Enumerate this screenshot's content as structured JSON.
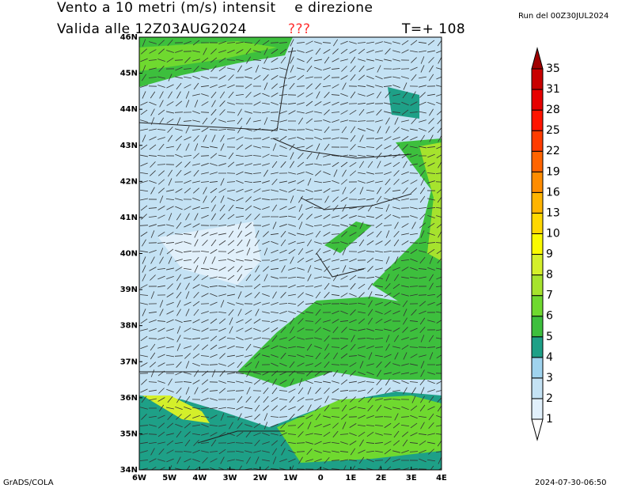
{
  "header": {
    "title": "Vento a 10 metri (m/s) intensit    e direzione",
    "valid": "Valida alle 12Z03AUG2024",
    "flag": "???",
    "forecast": "T=+ 108",
    "run": "Run del 00Z30JUL2024"
  },
  "map": {
    "lat_labels": [
      "34N",
      "35N",
      "36N",
      "37N",
      "38N",
      "39N",
      "40N",
      "41N",
      "42N",
      "43N",
      "44N",
      "45N",
      "46N"
    ],
    "lon_labels": [
      "6W",
      "5W",
      "4W",
      "3W",
      "2W",
      "1W",
      "0",
      "1E",
      "2E",
      "3E",
      "4E"
    ]
  },
  "colorbar": {
    "levels": [
      1,
      2,
      3,
      4,
      5,
      6,
      7,
      8,
      9,
      10,
      13,
      16,
      19,
      22,
      25,
      28,
      31,
      35
    ],
    "colors": [
      "#ffffff",
      "#e1f0fb",
      "#c4e2f4",
      "#9fd3ee",
      "#1ea087",
      "#3dbf3d",
      "#6fd92f",
      "#a6e32d",
      "#d4ef2a",
      "#fafa00",
      "#ffd800",
      "#ffb400",
      "#ff8c00",
      "#ff6400",
      "#ff3c00",
      "#ff1400",
      "#e60000",
      "#c80000",
      "#a00000"
    ]
  },
  "footer": {
    "left": "GrADS/COLA",
    "right": "2024-07-30-06:50"
  }
}
